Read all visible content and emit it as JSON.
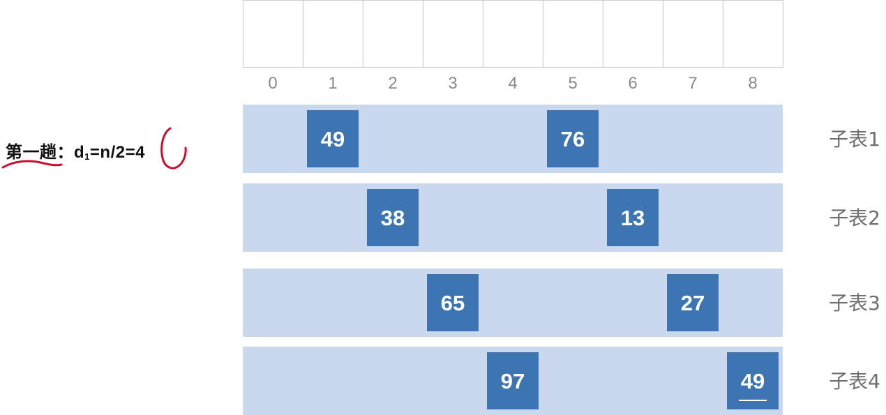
{
  "array": {
    "length": 9,
    "indices": [
      "0",
      "1",
      "2",
      "3",
      "4",
      "5",
      "6",
      "7",
      "8"
    ],
    "cell_values": [
      "",
      "",
      "",
      "",
      "",
      "",
      "",
      "",
      ""
    ]
  },
  "pass_label": {
    "prefix": "第一趟：",
    "d": "d",
    "subscript": "1",
    "formula": "=n/2=4"
  },
  "sublists": [
    {
      "label": "子表1",
      "items": [
        {
          "index": 1,
          "value": "49",
          "underlined": false
        },
        {
          "index": 5,
          "value": "76",
          "underlined": false
        }
      ]
    },
    {
      "label": "子表2",
      "items": [
        {
          "index": 2,
          "value": "38",
          "underlined": false
        },
        {
          "index": 6,
          "value": "13",
          "underlined": false
        }
      ]
    },
    {
      "label": "子表3",
      "items": [
        {
          "index": 3,
          "value": "65",
          "underlined": false
        },
        {
          "index": 7,
          "value": "27",
          "underlined": false
        }
      ]
    },
    {
      "label": "子表4",
      "items": [
        {
          "index": 4,
          "value": "97",
          "underlined": false
        },
        {
          "index": 8,
          "value": "49",
          "underlined": true
        }
      ]
    }
  ],
  "colors": {
    "cell_border": "#cfcfcf",
    "index_text": "#8a8a8a",
    "band_fill": "#c9d8ec",
    "box_fill": "#3d74b2",
    "box_text": "#ffffff",
    "sublist_label": "#6e6e6e",
    "annotation": "#c8102e"
  }
}
